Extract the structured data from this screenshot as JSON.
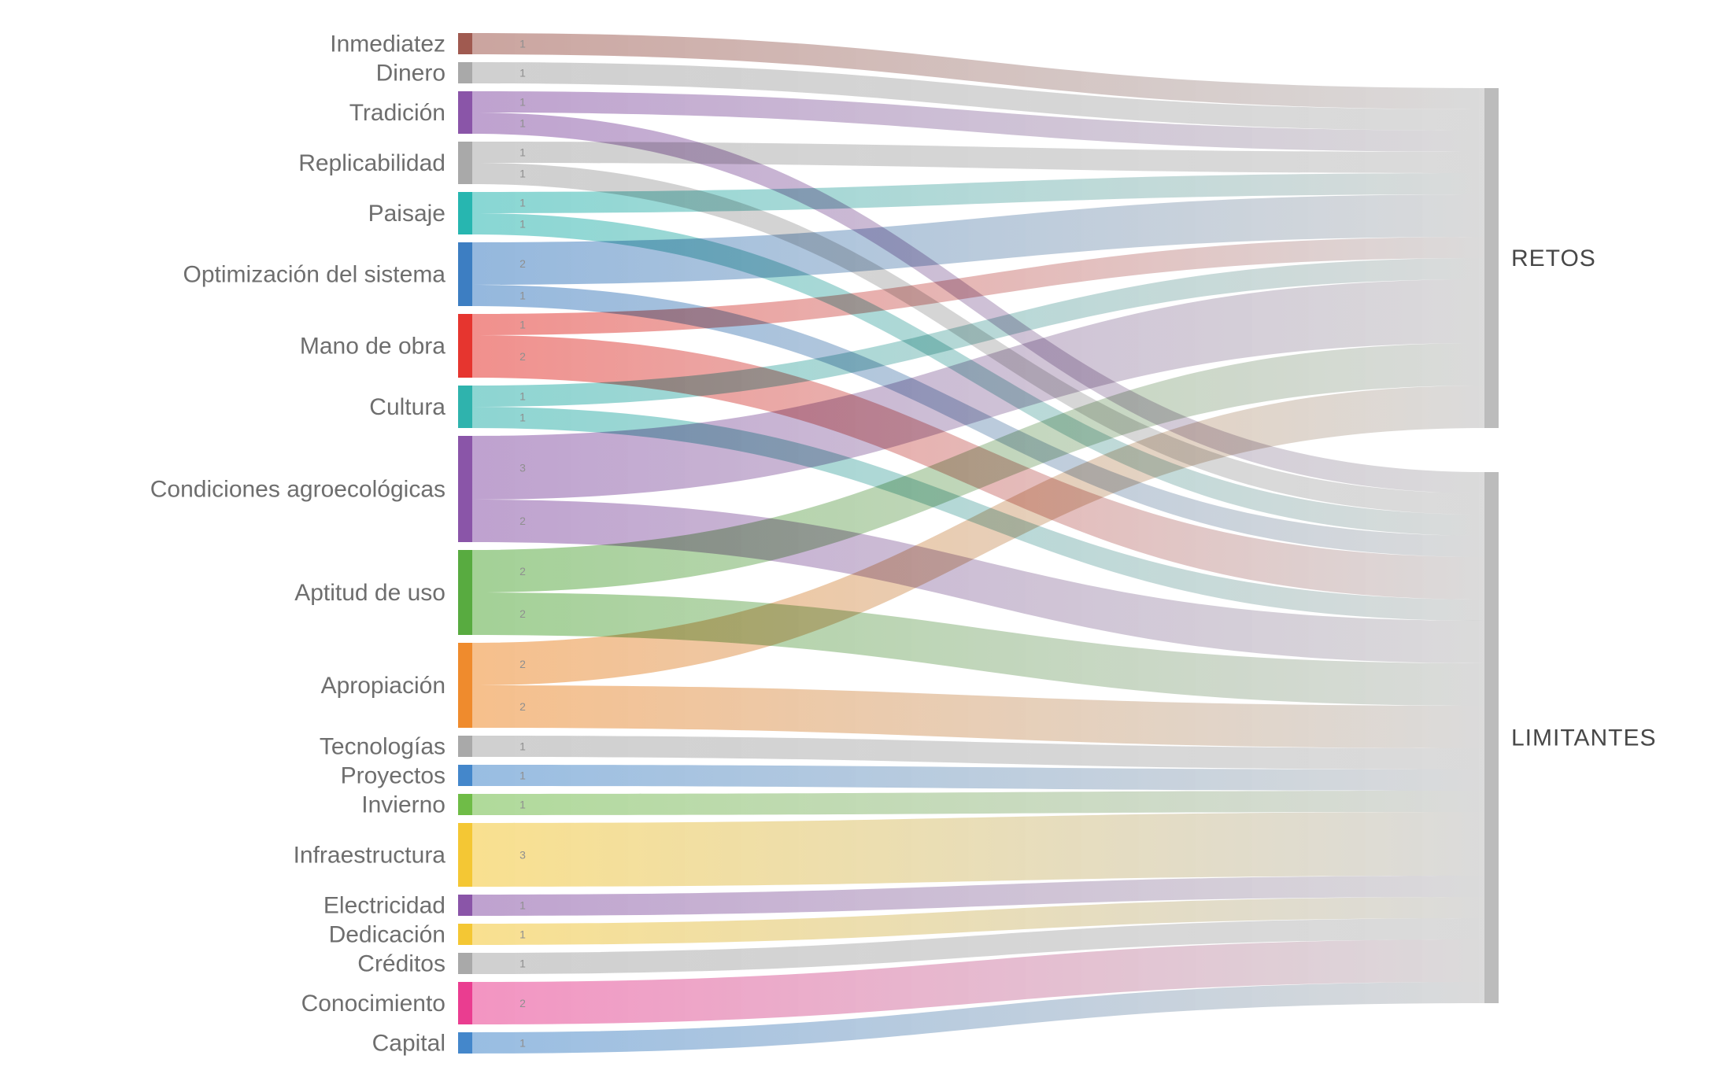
{
  "page": {
    "background": "#ffffff"
  },
  "chart_data": {
    "type": "sankey",
    "title": "",
    "orientation": "horizontal",
    "grid": false,
    "legend": "none",
    "link_end_color": "#b4b4b4",
    "link_opacity": 0.55,
    "node_label_color": "#6e6e6e",
    "target_label_color": "#474747",
    "value_label_color": "#8f8f8f",
    "nodes": {
      "sources": [
        {
          "name": "Inmediatez",
          "color": "#a05a50"
        },
        {
          "name": "Dinero",
          "color": "#a9a9a9"
        },
        {
          "name": "Tradición",
          "color": "#8a55a8"
        },
        {
          "name": "Replicabilidad",
          "color": "#a9a9a9"
        },
        {
          "name": "Paisaje",
          "color": "#27b6b0"
        },
        {
          "name": "Optimización del sistema",
          "color": "#3d7ec2"
        },
        {
          "name": "Mano de obra",
          "color": "#e6352f"
        },
        {
          "name": "Cultura",
          "color": "#2fb3ad"
        },
        {
          "name": "Condiciones agroecológicas",
          "color": "#8a55a8"
        },
        {
          "name": "Aptitud de uso",
          "color": "#58ab40"
        },
        {
          "name": "Apropiación",
          "color": "#ef8b2d"
        },
        {
          "name": "Tecnologías",
          "color": "#a9a9a9"
        },
        {
          "name": "Proyectos",
          "color": "#4487cb"
        },
        {
          "name": "Invierno",
          "color": "#6fbc47"
        },
        {
          "name": "Infraestructura",
          "color": "#f4c734"
        },
        {
          "name": "Electricidad",
          "color": "#8a55a8"
        },
        {
          "name": "Dedicación",
          "color": "#f4c734"
        },
        {
          "name": "Créditos",
          "color": "#a9a9a9"
        },
        {
          "name": "Conocimiento",
          "color": "#ea3d90"
        },
        {
          "name": "Capital",
          "color": "#4487cb"
        }
      ],
      "targets": [
        {
          "name": "RETOS",
          "color": "#bcbcbc"
        },
        {
          "name": "LIMITANTES",
          "color": "#bcbcbc"
        }
      ]
    },
    "links": [
      {
        "source": "Inmediatez",
        "target": "RETOS",
        "value": 1
      },
      {
        "source": "Dinero",
        "target": "RETOS",
        "value": 1
      },
      {
        "source": "Tradición",
        "target": "RETOS",
        "value": 1
      },
      {
        "source": "Tradición",
        "target": "LIMITANTES",
        "value": 1
      },
      {
        "source": "Replicabilidad",
        "target": "RETOS",
        "value": 1
      },
      {
        "source": "Replicabilidad",
        "target": "LIMITANTES",
        "value": 1
      },
      {
        "source": "Paisaje",
        "target": "RETOS",
        "value": 1
      },
      {
        "source": "Paisaje",
        "target": "LIMITANTES",
        "value": 1
      },
      {
        "source": "Optimización del sistema",
        "target": "RETOS",
        "value": 2
      },
      {
        "source": "Optimización del sistema",
        "target": "LIMITANTES",
        "value": 1
      },
      {
        "source": "Mano de obra",
        "target": "RETOS",
        "value": 1
      },
      {
        "source": "Mano de obra",
        "target": "LIMITANTES",
        "value": 2
      },
      {
        "source": "Cultura",
        "target": "RETOS",
        "value": 1
      },
      {
        "source": "Cultura",
        "target": "LIMITANTES",
        "value": 1
      },
      {
        "source": "Condiciones agroecológicas",
        "target": "RETOS",
        "value": 3
      },
      {
        "source": "Condiciones agroecológicas",
        "target": "LIMITANTES",
        "value": 2
      },
      {
        "source": "Aptitud de uso",
        "target": "RETOS",
        "value": 2
      },
      {
        "source": "Aptitud de uso",
        "target": "LIMITANTES",
        "value": 2
      },
      {
        "source": "Apropiación",
        "target": "RETOS",
        "value": 2
      },
      {
        "source": "Apropiación",
        "target": "LIMITANTES",
        "value": 2
      },
      {
        "source": "Tecnologías",
        "target": "LIMITANTES",
        "value": 1
      },
      {
        "source": "Proyectos",
        "target": "LIMITANTES",
        "value": 1
      },
      {
        "source": "Invierno",
        "target": "LIMITANTES",
        "value": 1
      },
      {
        "source": "Infraestructura",
        "target": "LIMITANTES",
        "value": 3
      },
      {
        "source": "Electricidad",
        "target": "LIMITANTES",
        "value": 1
      },
      {
        "source": "Dedicación",
        "target": "LIMITANTES",
        "value": 1
      },
      {
        "source": "Créditos",
        "target": "LIMITANTES",
        "value": 1
      },
      {
        "source": "Conocimiento",
        "target": "LIMITANTES",
        "value": 2
      },
      {
        "source": "Capital",
        "target": "LIMITANTES",
        "value": 1
      }
    ]
  }
}
